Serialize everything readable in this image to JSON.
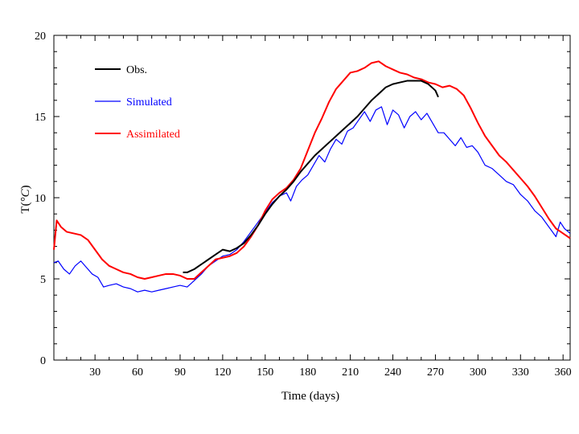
{
  "chart_data": {
    "type": "line",
    "title": "",
    "xlabel": "Time (days)",
    "ylabel_prefix": "T(",
    "ylabel_unit": "°C",
    "ylabel_suffix": ")",
    "xlim": [
      1,
      365
    ],
    "ylim": [
      0,
      20
    ],
    "xticks": [
      30,
      60,
      90,
      120,
      150,
      180,
      210,
      240,
      270,
      300,
      330,
      360
    ],
    "yticks": [
      0,
      5,
      10,
      15,
      20
    ],
    "legend_position": "top-left",
    "series": [
      {
        "name": "Obs.",
        "color": "#000000",
        "x": [
          92,
          95,
          100,
          105,
          110,
          115,
          120,
          125,
          130,
          135,
          140,
          145,
          150,
          155,
          160,
          165,
          170,
          175,
          180,
          185,
          190,
          195,
          200,
          205,
          210,
          215,
          220,
          225,
          230,
          235,
          240,
          245,
          250,
          255,
          260,
          265,
          270,
          272
        ],
        "y": [
          5.4,
          5.4,
          5.6,
          5.9,
          6.2,
          6.5,
          6.8,
          6.7,
          6.9,
          7.2,
          7.7,
          8.3,
          9.0,
          9.6,
          10.1,
          10.5,
          11.0,
          11.6,
          12.1,
          12.6,
          13.0,
          13.4,
          13.8,
          14.2,
          14.6,
          15.0,
          15.5,
          16.0,
          16.4,
          16.8,
          17.0,
          17.1,
          17.2,
          17.2,
          17.2,
          17.0,
          16.6,
          16.2
        ]
      },
      {
        "name": "Simulated",
        "color": "#0000ff",
        "x": [
          1,
          4,
          8,
          12,
          16,
          20,
          24,
          28,
          32,
          36,
          40,
          45,
          50,
          55,
          60,
          65,
          70,
          75,
          80,
          85,
          90,
          95,
          100,
          105,
          110,
          115,
          120,
          125,
          130,
          135,
          140,
          145,
          150,
          155,
          160,
          165,
          168,
          172,
          176,
          180,
          184,
          188,
          192,
          196,
          200,
          204,
          208,
          212,
          216,
          220,
          224,
          228,
          232,
          236,
          240,
          244,
          248,
          252,
          256,
          260,
          264,
          268,
          272,
          276,
          280,
          284,
          288,
          292,
          296,
          300,
          305,
          310,
          315,
          320,
          325,
          330,
          335,
          340,
          345,
          350,
          355,
          358,
          361,
          365
        ],
        "y": [
          6.0,
          6.1,
          5.6,
          5.3,
          5.8,
          6.1,
          5.7,
          5.3,
          5.1,
          4.5,
          4.6,
          4.7,
          4.5,
          4.4,
          4.2,
          4.3,
          4.2,
          4.3,
          4.4,
          4.5,
          4.6,
          4.5,
          4.9,
          5.3,
          5.8,
          6.1,
          6.4,
          6.5,
          6.8,
          7.3,
          7.9,
          8.5,
          9.1,
          9.7,
          10.1,
          10.3,
          9.8,
          10.7,
          11.1,
          11.4,
          12.0,
          12.6,
          12.2,
          13.0,
          13.6,
          13.3,
          14.1,
          14.3,
          14.8,
          15.3,
          14.7,
          15.4,
          15.6,
          14.5,
          15.4,
          15.1,
          14.3,
          15.0,
          15.3,
          14.8,
          15.2,
          14.6,
          14.0,
          14.0,
          13.6,
          13.2,
          13.7,
          13.1,
          13.2,
          12.8,
          12.0,
          11.8,
          11.4,
          11.0,
          10.8,
          10.2,
          9.8,
          9.2,
          8.8,
          8.2,
          7.6,
          8.5,
          8.1,
          7.8
        ]
      },
      {
        "name": "Assimilated",
        "color": "#ff0000",
        "x": [
          1,
          3,
          6,
          10,
          15,
          20,
          25,
          30,
          35,
          40,
          45,
          50,
          55,
          60,
          65,
          70,
          75,
          80,
          85,
          90,
          95,
          100,
          105,
          110,
          115,
          120,
          125,
          130,
          135,
          140,
          145,
          150,
          155,
          160,
          165,
          170,
          175,
          180,
          185,
          190,
          195,
          200,
          205,
          210,
          215,
          220,
          225,
          230,
          235,
          240,
          245,
          250,
          255,
          260,
          265,
          270,
          275,
          280,
          285,
          290,
          295,
          300,
          305,
          310,
          315,
          320,
          325,
          330,
          335,
          340,
          345,
          350,
          355,
          360,
          365
        ],
        "y": [
          6.8,
          8.6,
          8.2,
          7.9,
          7.8,
          7.7,
          7.4,
          6.8,
          6.2,
          5.8,
          5.6,
          5.4,
          5.3,
          5.1,
          5.0,
          5.1,
          5.2,
          5.3,
          5.3,
          5.2,
          5.0,
          5.0,
          5.4,
          5.8,
          6.2,
          6.3,
          6.4,
          6.6,
          7.0,
          7.6,
          8.3,
          9.2,
          9.9,
          10.3,
          10.6,
          11.1,
          11.8,
          12.9,
          14.0,
          14.9,
          15.9,
          16.7,
          17.2,
          17.7,
          17.8,
          18.0,
          18.3,
          18.4,
          18.1,
          17.9,
          17.7,
          17.6,
          17.4,
          17.3,
          17.1,
          17.0,
          16.8,
          16.9,
          16.7,
          16.3,
          15.5,
          14.6,
          13.8,
          13.2,
          12.6,
          12.2,
          11.7,
          11.2,
          10.7,
          10.1,
          9.4,
          8.7,
          8.1,
          7.8,
          7.5
        ]
      }
    ]
  }
}
